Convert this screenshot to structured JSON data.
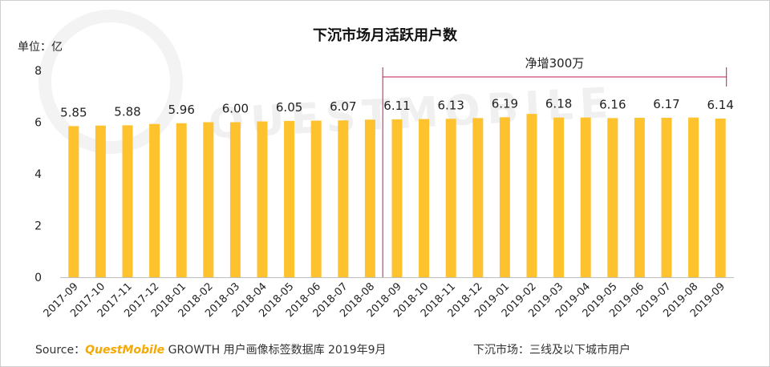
{
  "chart_data": {
    "type": "bar",
    "title": "下沉市场月活跃用户数",
    "unit_label": "单位：亿",
    "ylim": [
      0,
      8
    ],
    "yticks": [
      0,
      2,
      4,
      6,
      8
    ],
    "color": "#FDC22D",
    "categories": [
      "2017-09",
      "2017-10",
      "2017-11",
      "2017-12",
      "2018-01",
      "2018-02",
      "2018-03",
      "2018-04",
      "2018-05",
      "2018-06",
      "2018-07",
      "2018-08",
      "2018-09",
      "2018-10",
      "2018-11",
      "2018-12",
      "2019-01",
      "2019-02",
      "2019-03",
      "2019-04",
      "2019-05",
      "2019-06",
      "2019-07",
      "2019-08",
      "2019-09"
    ],
    "values": [
      5.85,
      5.87,
      5.88,
      5.93,
      5.96,
      6.0,
      6.0,
      6.03,
      6.05,
      6.06,
      6.07,
      6.1,
      6.11,
      6.12,
      6.13,
      6.16,
      6.19,
      6.32,
      6.18,
      6.18,
      6.16,
      6.17,
      6.17,
      6.18,
      6.14
    ],
    "data_labels": [
      "5.85",
      "",
      "5.88",
      "",
      "5.96",
      "",
      "6.00",
      "",
      "6.05",
      "",
      "6.07",
      "",
      "6.11",
      "",
      "6.13",
      "",
      "6.19",
      "",
      "6.18",
      "",
      "6.16",
      "",
      "6.17",
      "",
      "6.14"
    ],
    "annotation": {
      "text": "净增300万",
      "from_category": "2018-09",
      "to_category": "2019-09",
      "color": "#C2185B"
    }
  },
  "footer": {
    "source_prefix": "Source：",
    "source_brand": "QuestMobile",
    "source_rest": " GROWTH 用户画像标签数据库  2019年9月",
    "note": "下沉市场：三线及以下城市用户"
  },
  "watermark": "QUESTMOBILE"
}
